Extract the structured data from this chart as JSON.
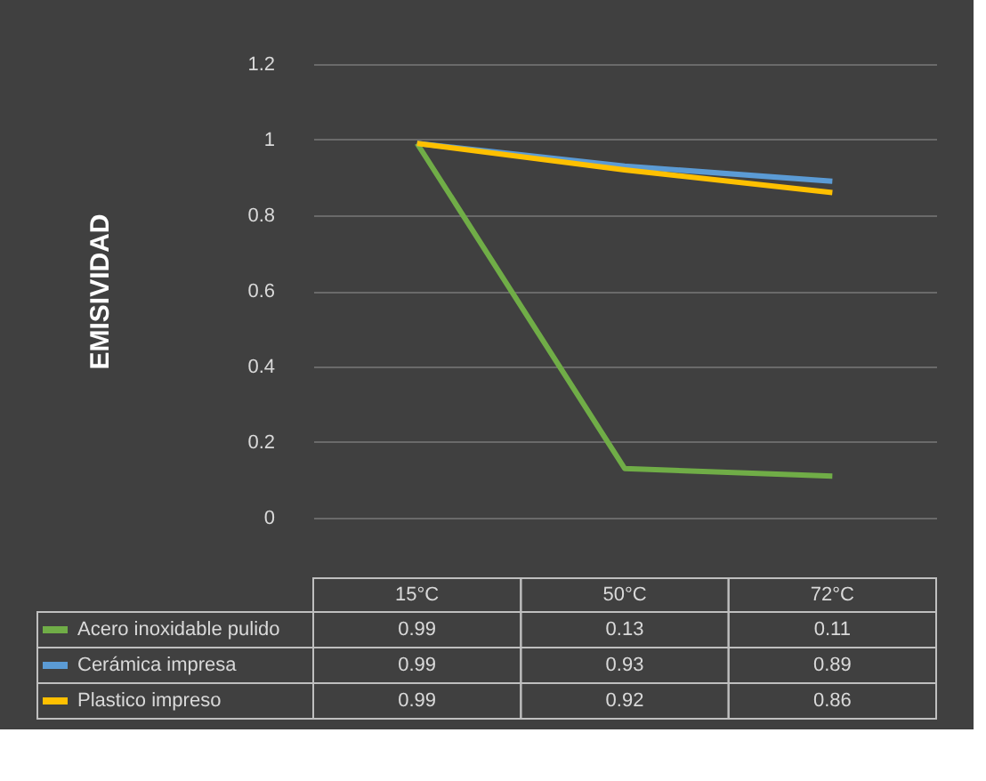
{
  "chart_data": {
    "type": "line",
    "ylabel": "EMISIVIDAD",
    "categories": [
      "15°C",
      "50°C",
      "72°C"
    ],
    "series": [
      {
        "name": "Acero inoxidable pulido",
        "color": "#70ad47",
        "values": [
          0.99,
          0.13,
          0.11
        ]
      },
      {
        "name": "Cerámica impresa",
        "color": "#5b9bd5",
        "values": [
          0.99,
          0.93,
          0.89
        ]
      },
      {
        "name": "Plastico impreso",
        "color": "#ffc000",
        "values": [
          0.99,
          0.92,
          0.86
        ]
      }
    ],
    "ylim": [
      0,
      1.2
    ],
    "yticks": [
      0,
      0.2,
      0.4,
      0.6,
      0.8,
      1,
      1.2
    ],
    "grid": "y",
    "legend": "bottom",
    "data_labels": true,
    "marker": "none",
    "line_style": "solid"
  }
}
